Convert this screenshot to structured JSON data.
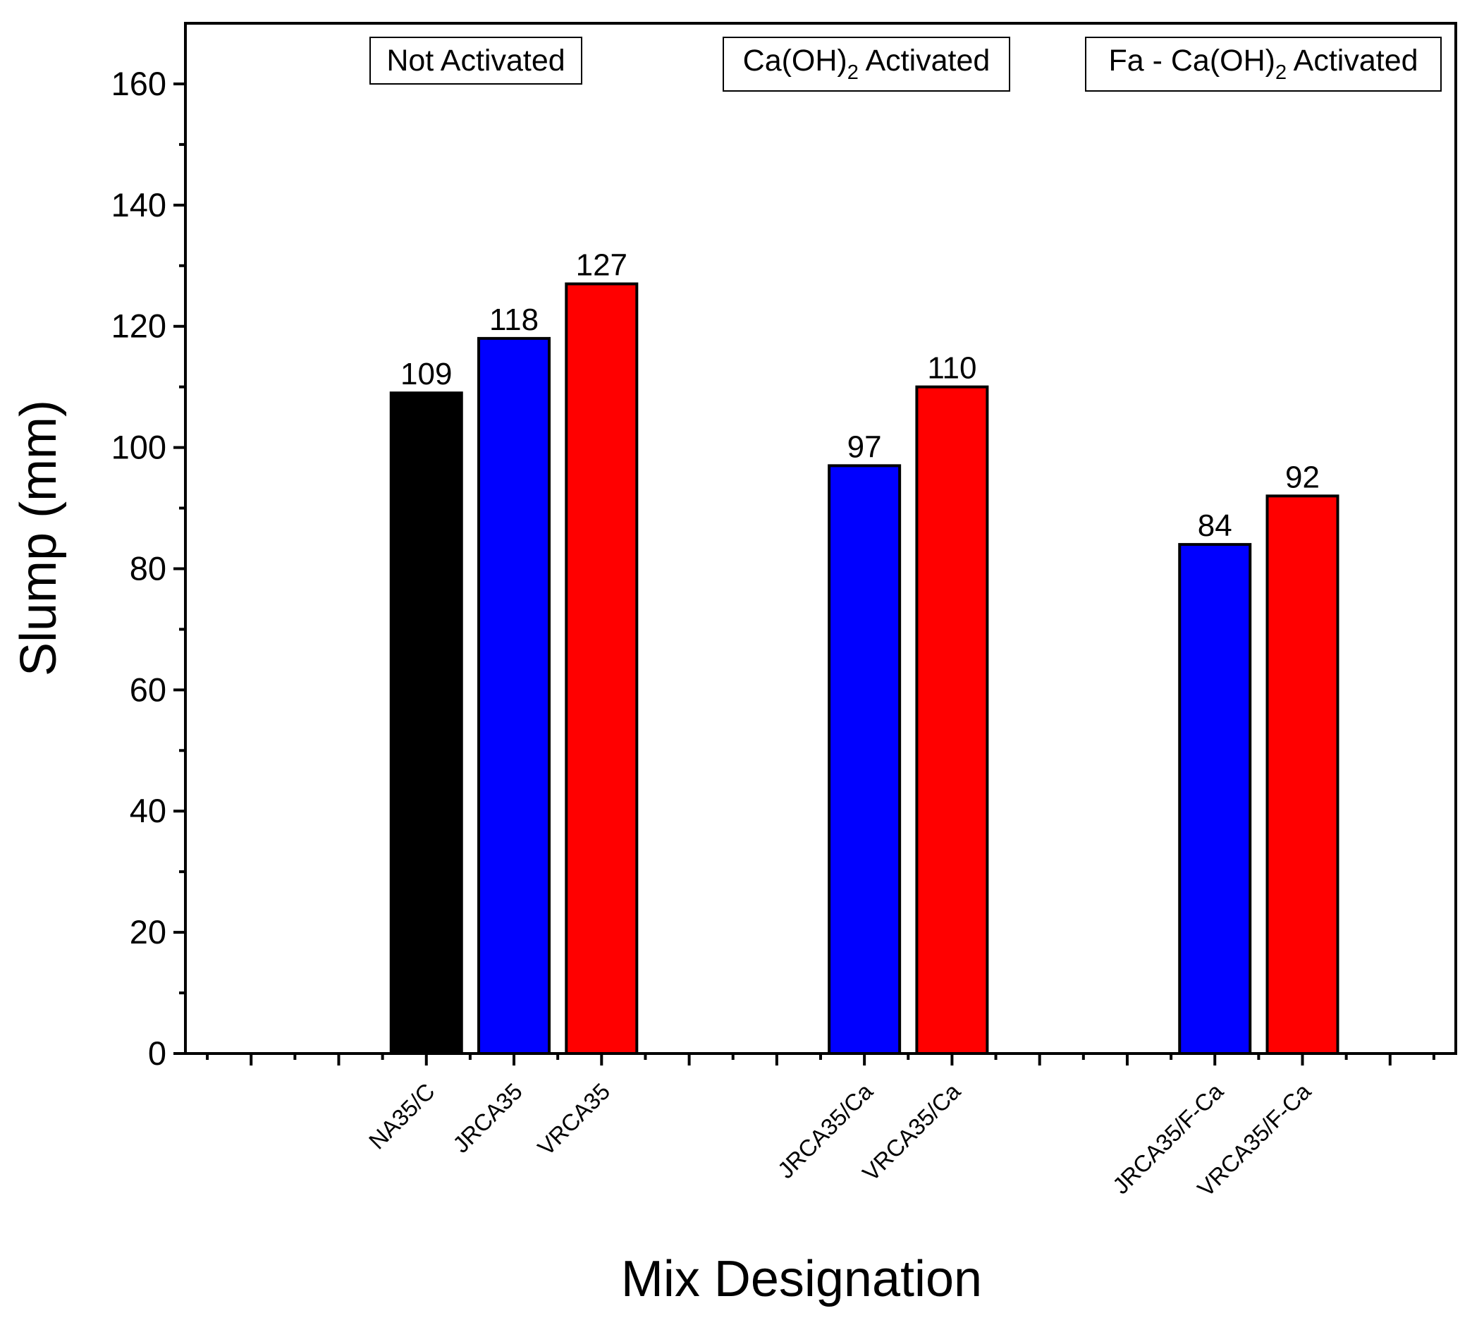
{
  "chart_data": {
    "type": "bar",
    "title": "",
    "xlabel": "Mix Designation",
    "ylabel": "Slump (mm)",
    "ylim": [
      0,
      170
    ],
    "yticks": [
      0,
      20,
      40,
      60,
      80,
      100,
      120,
      140,
      160
    ],
    "y_minor_step": 10,
    "x_slots": 29,
    "grid": false,
    "bars": [
      {
        "category": "NA35/C",
        "value": 109,
        "label": "109",
        "color": "#000000",
        "slot": 5
      },
      {
        "category": "JRCA35",
        "value": 118,
        "label": "118",
        "color": "#0000FF",
        "slot": 7
      },
      {
        "category": "VRCA35",
        "value": 127,
        "label": "127",
        "color": "#FF0000",
        "slot": 9
      },
      {
        "category": "JRCA35/Ca",
        "value": 97,
        "label": "97",
        "color": "#0000FF",
        "slot": 15
      },
      {
        "category": "VRCA35/Ca",
        "value": 110,
        "label": "110",
        "color": "#FF0000",
        "slot": 17
      },
      {
        "category": "JRCA35/F-Ca",
        "value": 84,
        "label": "84",
        "color": "#0000FF",
        "slot": 23
      },
      {
        "category": "VRCA35/F-Ca",
        "value": 92,
        "label": "92",
        "color": "#FF0000",
        "slot": 25
      }
    ],
    "group_labels": [
      {
        "before": "Not Activated",
        "sub": "",
        "after": ""
      },
      {
        "before": "Ca(OH)",
        "sub": "2",
        "after": " Activated"
      },
      {
        "before": "Fa - Ca(OH)",
        "sub": "2",
        "after": " Activated"
      }
    ]
  }
}
